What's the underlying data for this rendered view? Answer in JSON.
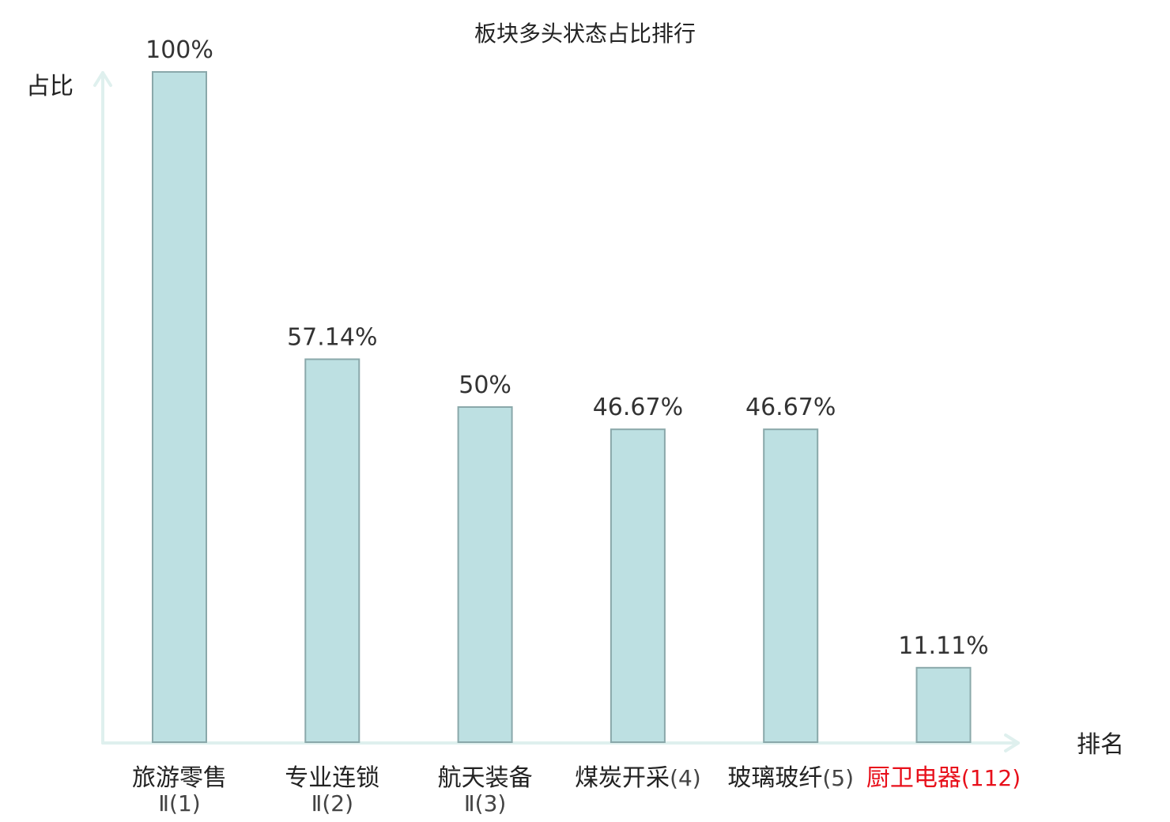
{
  "chart_data": {
    "type": "bar",
    "title": "板块多头状态占比排行",
    "ylabel": "占比",
    "xlabel": "排名",
    "ylim": [
      0,
      100
    ],
    "grid": false,
    "legend": "none",
    "categories": [
      {
        "name": "旅游零售",
        "rank": "Ⅱ(1)",
        "highlight": false
      },
      {
        "name": "专业连锁",
        "rank": "Ⅱ(2)",
        "highlight": false
      },
      {
        "name": "航天装备",
        "rank": "Ⅱ(3)",
        "highlight": false
      },
      {
        "name": "煤炭开采",
        "rank": "(4)",
        "highlight": false
      },
      {
        "name": "玻璃玻纤",
        "rank": "(5)",
        "highlight": false
      },
      {
        "name": "厨卫电器",
        "rank": "(112)",
        "highlight": true
      }
    ],
    "values": [
      100,
      57.14,
      50,
      46.67,
      46.67,
      11.11
    ],
    "value_labels": [
      "100%",
      "57.14%",
      "50%",
      "46.67%",
      "46.67%",
      "11.11%"
    ],
    "colors": {
      "bar_fill": "#bde0e2",
      "bar_stroke": "#8aa8aa",
      "axis": "#dff0ee",
      "text": "#222222",
      "rank_text": "#444444",
      "highlight": "#e8101b"
    }
  }
}
